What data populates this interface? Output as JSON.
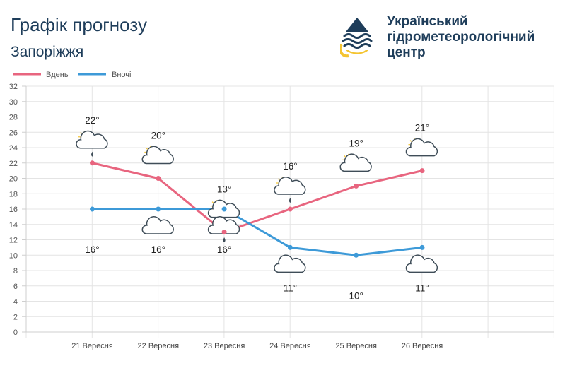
{
  "header": {
    "title": "Графік прогнозу",
    "city": "Запоріжжя",
    "org_lines": [
      "Український",
      "гідрометеорологічний",
      "центр"
    ]
  },
  "chart_data": {
    "type": "line",
    "categories": [
      "21 Вересня",
      "22 Вересня",
      "23 Вересня",
      "24 Вересня",
      "25 Вересня",
      "26 Вересня"
    ],
    "series": [
      {
        "name": "Вдень",
        "color": "#e8657f",
        "values": [
          22,
          20,
          13,
          16,
          19,
          21
        ],
        "labels": [
          "22°",
          "20°",
          "13°",
          "16°",
          "19°",
          "21°"
        ],
        "icons": [
          "partly-cloudy-rain-icon",
          "partly-cloudy-icon",
          "partly-cloudy-icon",
          "partly-cloudy-rain-icon",
          "partly-cloudy-icon",
          "partly-cloudy-icon"
        ]
      },
      {
        "name": "Вночі",
        "color": "#3d9ad8",
        "values": [
          16,
          16,
          16,
          11,
          10,
          11
        ],
        "labels": [
          "16°",
          "16°",
          "16°",
          "11°",
          "10°",
          "11°"
        ],
        "icons": [
          "moon-icon",
          "night-cloudy-icon",
          "night-cloudy-rain-icon",
          "night-cloudy-icon",
          "moon-icon",
          "night-cloudy-icon"
        ]
      }
    ],
    "ylim": [
      0,
      32
    ],
    "yticks": [
      0,
      2,
      4,
      6,
      8,
      10,
      12,
      14,
      16,
      18,
      20,
      22,
      24,
      26,
      28,
      30,
      32
    ],
    "grid": true,
    "legend_position": "top-left"
  }
}
